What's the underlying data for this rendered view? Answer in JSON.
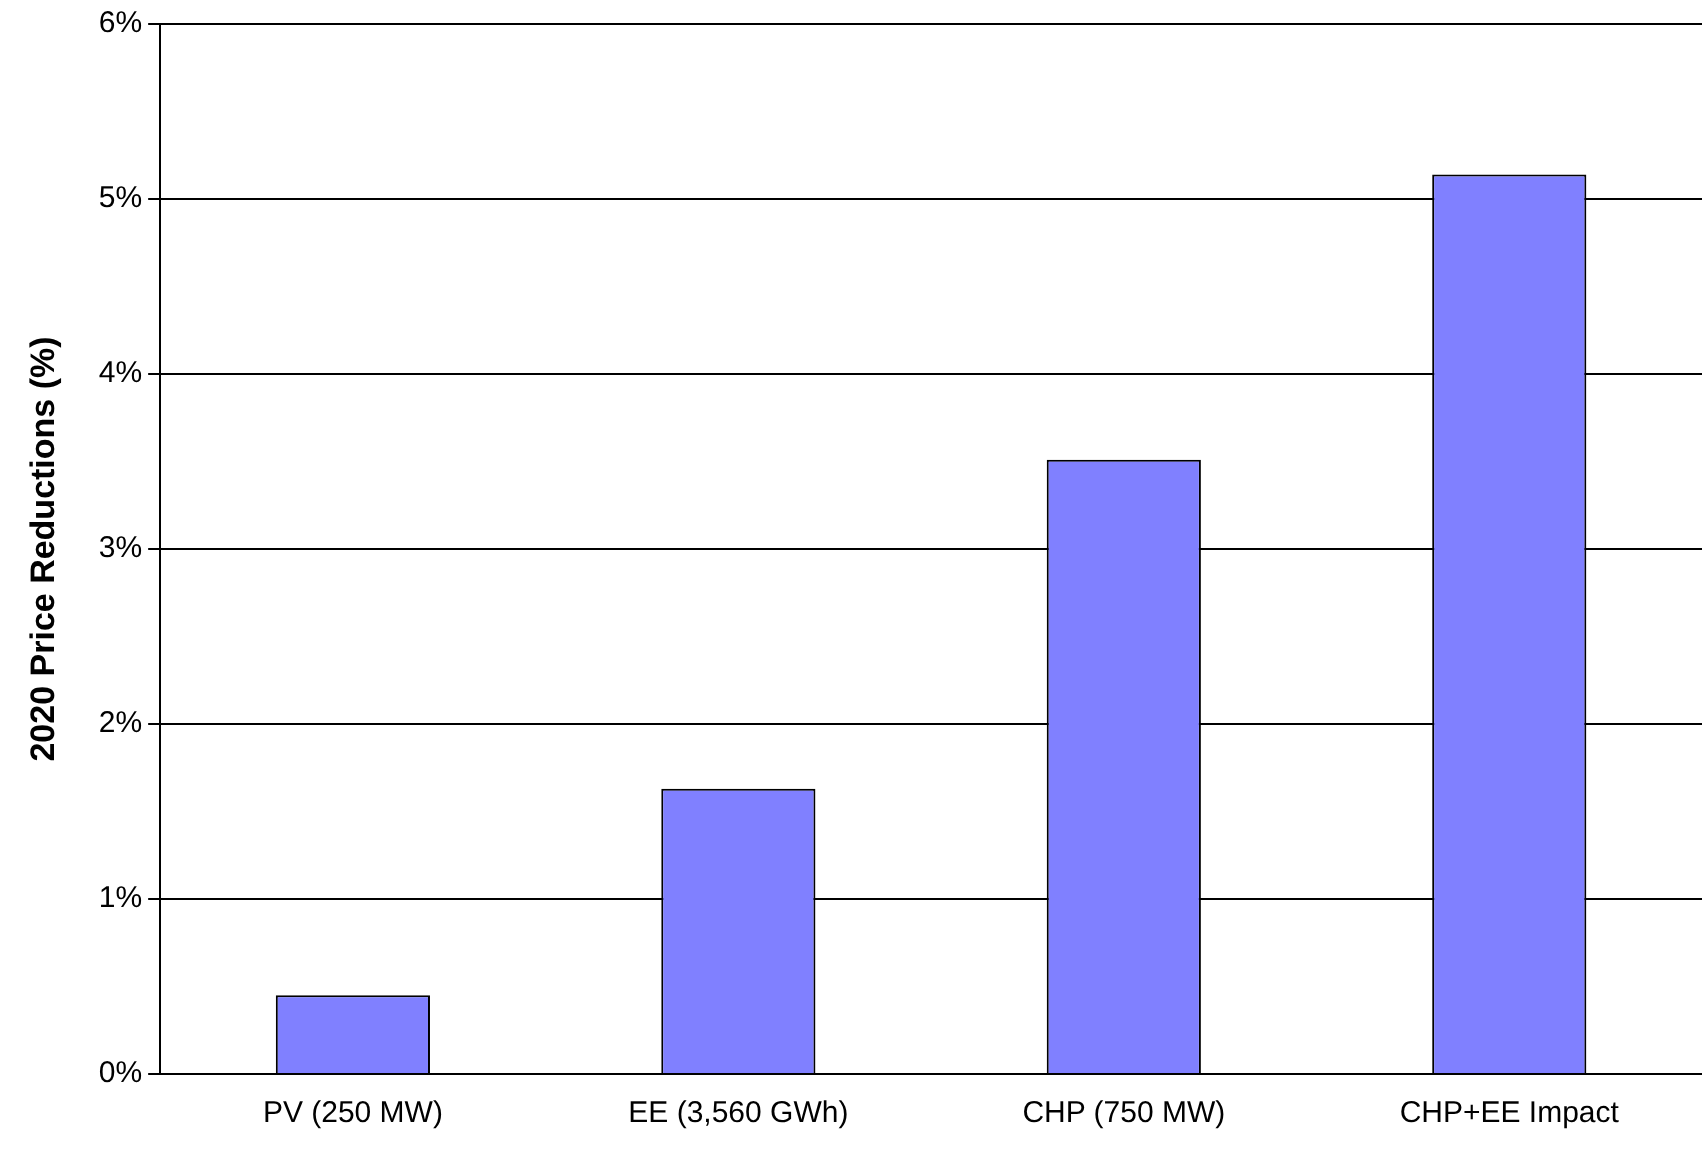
{
  "chart_data": {
    "type": "bar",
    "ylabel": "2020 Price Reductions (%)",
    "categories": [
      "PV (250 MW)",
      "EE (3,560 GWh)",
      "CHP (750 MW)",
      "CHP+EE Impact"
    ],
    "values": [
      0.45,
      1.63,
      3.51,
      5.14
    ],
    "color": "#8080ff",
    "ylim": [
      0,
      6
    ],
    "yticks": [
      {
        "value": 0,
        "label": "0%"
      },
      {
        "value": 1,
        "label": "1%"
      },
      {
        "value": 2,
        "label": "2%"
      },
      {
        "value": 3,
        "label": "3%"
      },
      {
        "value": 4,
        "label": "4%"
      },
      {
        "value": 5,
        "label": "5%"
      },
      {
        "value": 6,
        "label": "6%"
      }
    ],
    "grid": "y",
    "legend": false
  }
}
